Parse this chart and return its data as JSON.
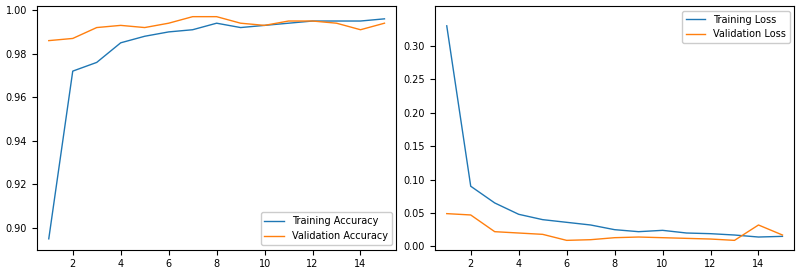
{
  "epochs": [
    1,
    2,
    3,
    4,
    5,
    6,
    7,
    8,
    9,
    10,
    11,
    12,
    13,
    14,
    15
  ],
  "train_acc": [
    0.895,
    0.972,
    0.976,
    0.985,
    0.988,
    0.99,
    0.991,
    0.994,
    0.992,
    0.993,
    0.994,
    0.995,
    0.995,
    0.995,
    0.996
  ],
  "val_acc": [
    0.986,
    0.987,
    0.992,
    0.993,
    0.992,
    0.994,
    0.997,
    0.997,
    0.994,
    0.993,
    0.995,
    0.995,
    0.994,
    0.991,
    0.994
  ],
  "train_loss": [
    0.33,
    0.09,
    0.065,
    0.048,
    0.04,
    0.036,
    0.032,
    0.025,
    0.022,
    0.024,
    0.02,
    0.019,
    0.017,
    0.014,
    0.015
  ],
  "val_loss": [
    0.049,
    0.047,
    0.022,
    0.02,
    0.018,
    0.009,
    0.01,
    0.013,
    0.014,
    0.013,
    0.012,
    0.011,
    0.009,
    0.032,
    0.017
  ],
  "color_blue": "#1f77b4",
  "color_orange": "#ff7f0e",
  "acc_label": "Training Accuracy",
  "val_acc_label": "Validation Accuracy",
  "loss_label": "Training Loss",
  "val_loss_label": "Validation Loss",
  "acc_ylim": [
    0.89,
    1.002
  ],
  "loss_ylim": [
    -0.005,
    0.36
  ],
  "acc_yticks": [
    0.9,
    0.92,
    0.94,
    0.96,
    0.98,
    1.0
  ],
  "loss_yticks": [
    0.0,
    0.05,
    0.1,
    0.15,
    0.2,
    0.25,
    0.3
  ],
  "xticks": [
    2,
    4,
    6,
    8,
    10,
    12,
    14
  ]
}
